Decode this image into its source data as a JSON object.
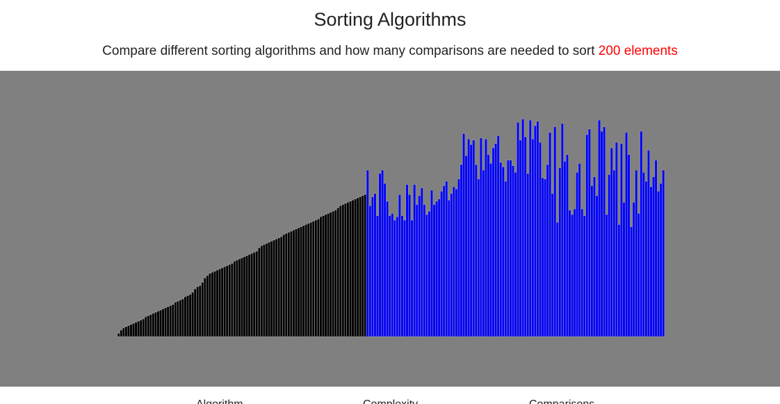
{
  "header": {
    "title": "Sorting Algorithms",
    "subtitle_prefix": "Compare different sorting algorithms and how many comparisons are needed to sort ",
    "subtitle_highlight": "200 elements"
  },
  "table": {
    "columns": [
      "Algorithm",
      "Complexity",
      "Comparisons"
    ]
  },
  "colors": {
    "background": "#808080",
    "sorted_bar": "#000000",
    "unsorted_bar": "#0000ff",
    "bar_separator": "#a0a0a0",
    "highlight": "#ff0000"
  },
  "visualization": {
    "element_count": 200,
    "max_value": 200,
    "sorted_values": [
      3,
      6,
      8,
      9,
      10,
      11,
      12,
      13,
      14,
      15,
      16,
      18,
      19,
      20,
      21,
      22,
      23,
      24,
      25,
      26,
      27,
      28,
      29,
      31,
      32,
      33,
      34,
      36,
      37,
      38,
      40,
      43,
      45,
      46,
      49,
      53,
      55,
      57,
      58,
      59,
      60,
      61,
      62,
      63,
      64,
      65,
      66,
      68,
      69,
      70,
      71,
      72,
      73,
      74,
      75,
      76,
      77,
      80,
      82,
      83,
      84,
      85,
      86,
      87,
      88,
      89,
      90,
      92,
      93,
      94,
      95,
      96,
      97,
      98,
      99,
      100,
      101,
      102,
      103,
      104,
      105,
      106,
      108,
      109,
      110,
      111,
      112,
      113,
      114,
      116,
      118,
      119,
      120,
      121,
      122,
      123,
      124,
      125,
      126,
      127,
      128
    ],
    "unsorted_values": [
      150,
      118,
      126,
      129,
      109,
      147,
      150,
      138,
      122,
      109,
      111,
      105,
      108,
      128,
      109,
      105,
      137,
      128,
      105,
      137,
      119,
      127,
      134,
      119,
      110,
      113,
      132,
      119,
      122,
      124,
      131,
      136,
      140,
      123,
      129,
      135,
      133,
      142,
      155,
      183,
      163,
      178,
      173,
      177,
      155,
      142,
      179,
      150,
      178,
      164,
      156,
      170,
      174,
      181,
      157,
      153,
      140,
      159,
      159,
      154,
      148,
      193,
      177,
      196,
      180,
      147,
      195,
      178,
      190,
      194,
      175,
      143,
      142,
      155,
      184,
      129,
      189,
      103,
      152,
      192,
      158,
      164,
      114,
      110,
      115,
      148,
      156,
      115,
      109,
      182,
      187,
      136,
      144,
      127,
      195,
      185,
      189,
      110,
      146,
      170,
      150,
      175,
      101,
      174,
      121,
      184,
      164,
      99,
      121,
      150,
      111,
      185,
      148,
      140,
      168,
      135,
      144,
      159,
      131,
      138,
      150
    ]
  }
}
